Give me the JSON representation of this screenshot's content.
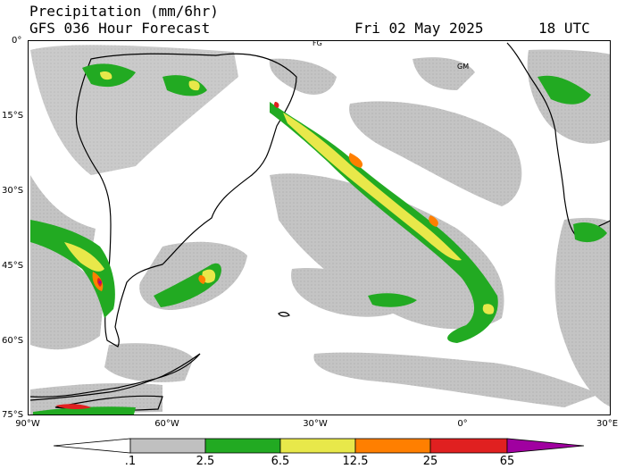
{
  "header": {
    "title": "Precipitation (mm/6hr)",
    "subtitle": "GFS 036 Hour Forecast",
    "date": "Fri 02 May 2025",
    "time": "18 UTC"
  },
  "map": {
    "lat_labels": [
      "0°",
      "15°S",
      "30°S",
      "45°S",
      "60°S",
      "75°S"
    ],
    "lon_labels": [
      "90°W",
      "60°W",
      "30°W",
      "0°",
      "30°E"
    ],
    "place_labels": [
      "FG",
      "GM"
    ],
    "colors": {
      "land_outline": "#000000",
      "light_precip": "#c0c0c0",
      "moderate": "#22aa22",
      "heavy": "#e8e84a",
      "very_heavy": "#ff7f00",
      "extreme": "#e02020",
      "max": "#a000a0"
    }
  },
  "colorbar": {
    "labels": [
      ".1",
      "2.5",
      "6.5",
      "12.5",
      "25",
      "65"
    ],
    "colors": [
      "#ffffff",
      "#c0c0c0",
      "#22aa22",
      "#e8e84a",
      "#ff7f00",
      "#e02020",
      "#a000a0"
    ]
  }
}
